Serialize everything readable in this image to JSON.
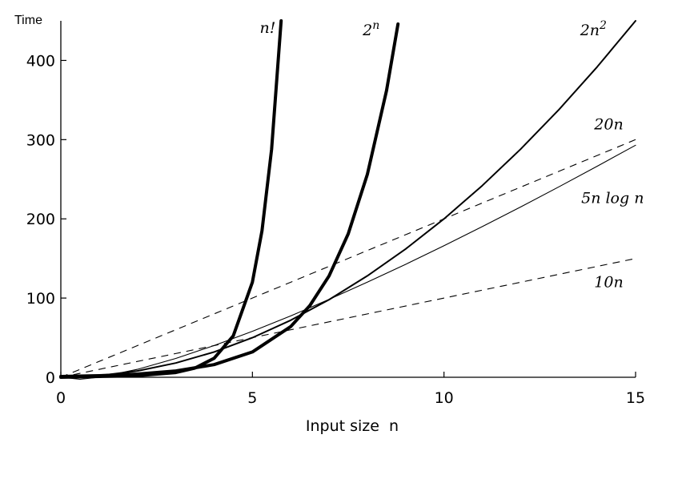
{
  "chart_data": {
    "type": "line",
    "title": "",
    "xlabel": "Input size  n",
    "ylabel": "Time",
    "xlim": [
      0,
      15
    ],
    "ylim": [
      0,
      450
    ],
    "x_ticks": [
      0,
      5,
      10,
      15
    ],
    "y_ticks": [
      0,
      100,
      200,
      300,
      400
    ],
    "grid": false,
    "legend": "none",
    "series": [
      {
        "name": "n!",
        "line_style": "solid",
        "weight": "heavy",
        "points": [
          [
            0,
            0
          ],
          [
            1,
            1
          ],
          [
            2,
            2
          ],
          [
            3,
            6
          ],
          [
            3.5,
            11.6
          ],
          [
            4,
            24
          ],
          [
            4.5,
            52.3
          ],
          [
            5,
            120
          ],
          [
            5.25,
            185
          ],
          [
            5.5,
            287.9
          ],
          [
            5.75,
            455
          ]
        ]
      },
      {
        "name": "2^n",
        "line_style": "solid",
        "weight": "heavy",
        "points": [
          [
            0,
            1
          ],
          [
            1,
            2
          ],
          [
            2,
            4
          ],
          [
            3,
            8
          ],
          [
            4,
            16
          ],
          [
            5,
            32
          ],
          [
            6,
            64
          ],
          [
            6.5,
            90.5
          ],
          [
            7,
            128
          ],
          [
            7.5,
            181
          ],
          [
            8,
            256
          ],
          [
            8.5,
            362
          ],
          [
            8.8,
            446
          ]
        ]
      },
      {
        "name": "2n^2",
        "line_style": "solid",
        "weight": "medium",
        "points": [
          [
            0,
            0
          ],
          [
            1,
            2
          ],
          [
            2,
            8
          ],
          [
            3,
            18
          ],
          [
            4,
            32
          ],
          [
            5,
            50
          ],
          [
            6,
            72
          ],
          [
            7,
            98
          ],
          [
            8,
            128
          ],
          [
            9,
            162
          ],
          [
            10,
            200
          ],
          [
            11,
            242
          ],
          [
            12,
            288
          ],
          [
            13,
            338
          ],
          [
            14,
            392
          ],
          [
            15,
            450
          ]
        ]
      },
      {
        "name": "20n",
        "line_style": "dashed",
        "weight": "light",
        "points": [
          [
            0,
            0
          ],
          [
            15,
            300
          ]
        ]
      },
      {
        "name": "5n log n",
        "line_style": "solid",
        "weight": "light",
        "points": [
          [
            0,
            0
          ],
          [
            0.5,
            -2.5
          ],
          [
            1,
            0
          ],
          [
            2,
            10
          ],
          [
            3,
            23.8
          ],
          [
            4,
            40
          ],
          [
            5,
            58
          ],
          [
            6,
            77.5
          ],
          [
            7,
            98.3
          ],
          [
            8,
            120
          ],
          [
            9,
            142.6
          ],
          [
            10,
            166
          ],
          [
            11,
            190.2
          ],
          [
            12,
            215
          ],
          [
            13,
            240.5
          ],
          [
            14,
            266.5
          ],
          [
            15,
            293
          ]
        ]
      },
      {
        "name": "10n",
        "line_style": "dashed",
        "weight": "light",
        "points": [
          [
            0,
            0
          ],
          [
            15,
            150
          ]
        ]
      }
    ],
    "annotations": [
      {
        "series": "n!",
        "text": "n!",
        "at": [
          5.4,
          435
        ]
      },
      {
        "series": "2^n",
        "text_base": "2",
        "text_sup": "n",
        "at": [
          8.1,
          432
        ]
      },
      {
        "series": "2n^2",
        "text_base": "2n",
        "text_sup": "2",
        "at": [
          13.9,
          432
        ]
      },
      {
        "series": "20n",
        "text": "20n",
        "at": [
          14.3,
          313
        ]
      },
      {
        "series": "5n log n",
        "text": "5n log n",
        "at": [
          14.4,
          220
        ]
      },
      {
        "series": "10n",
        "text": "10n",
        "at": [
          14.3,
          114
        ]
      }
    ]
  }
}
